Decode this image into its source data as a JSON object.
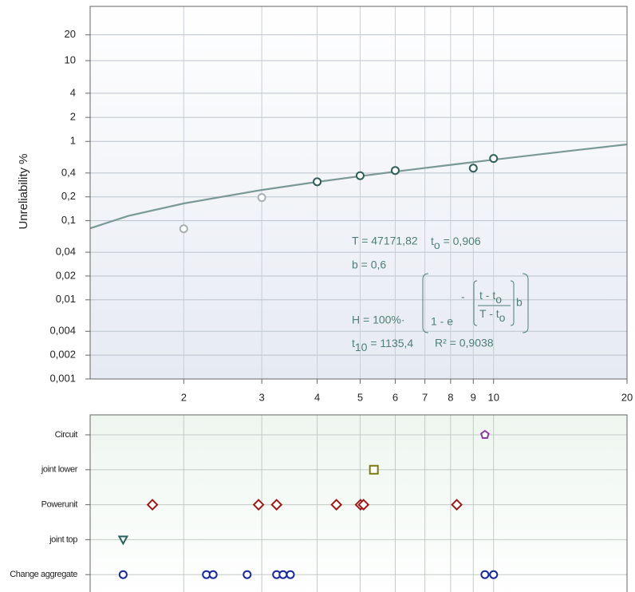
{
  "chart_data": [
    {
      "type": "weibull",
      "y_label": "Unreliability %",
      "xlim": [
        1.23,
        20
      ],
      "xticks": [
        2,
        3,
        4,
        5,
        6,
        7,
        8,
        9,
        10,
        20
      ],
      "ylim": [
        0.001,
        40
      ],
      "yticks": [
        {
          "value": 0.001,
          "label": "0,001"
        },
        {
          "value": 0.002,
          "label": "0,002"
        },
        {
          "value": 0.004,
          "label": "0,004"
        },
        {
          "value": 0.01,
          "label": "0,01"
        },
        {
          "value": 0.02,
          "label": "0,02"
        },
        {
          "value": 0.04,
          "label": "0,04"
        },
        {
          "value": 0.1,
          "label": "0,1"
        },
        {
          "value": 0.2,
          "label": "0,2"
        },
        {
          "value": 0.4,
          "label": "0,4"
        },
        1,
        2,
        4,
        10,
        20
      ],
      "grid": true,
      "series": [
        {
          "color": "#a6b0b0",
          "x": [
            2,
            3
          ],
          "values": [
            0.079,
            0.196
          ]
        },
        {
          "color": "#2f5f5a",
          "x": [
            4,
            5,
            6,
            9,
            10
          ],
          "values": [
            0.31,
            0.37,
            0.43,
            0.46,
            0.61
          ]
        }
      ],
      "fit": {
        "color": "#7a9896",
        "x": [
          1.23,
          1.5,
          2,
          3,
          4,
          5,
          6,
          8,
          10,
          15,
          20
        ],
        "values": [
          0.08,
          0.115,
          0.165,
          0.244,
          0.309,
          0.365,
          0.416,
          0.507,
          0.588,
          0.765,
          0.917
        ]
      },
      "params": {
        "T": "T = 47171,82",
        "t0": "t",
        "t0_sub": "o",
        "t0_rest": " = 0,906",
        "b": "b = 0,6",
        "t10": "t",
        "t10_sub": "10",
        "t10_rest": " = 1135,4",
        "r2": "R² = 0,9038"
      },
      "formula": {
        "lhs": "H  =  100%·",
        "one": "1 - e",
        "minus": "-",
        "num": "t - t",
        "num_sub": "o",
        "den": "T - t",
        "den_sub": "o",
        "exp": "b"
      }
    },
    {
      "type": "strip",
      "xlim": [
        1.23,
        20
      ],
      "xticks": [
        2,
        3,
        4,
        5,
        6,
        7,
        8,
        9,
        10,
        20
      ],
      "grid": true,
      "categories": [
        "Circuit",
        "joint lower",
        "Powerunit",
        "joint top",
        "Change aggregate"
      ],
      "series": [
        {
          "marker": "pentagon",
          "color": "#8a3a9a",
          "x": [
            9.56
          ]
        },
        {
          "marker": "square",
          "color": "#7a7a10",
          "x": [
            5.37
          ]
        },
        {
          "marker": "diamond",
          "color": "#9a1a1a",
          "x": [
            1.7,
            2.95,
            3.24,
            4.42,
            5.01,
            5.09,
            8.26
          ]
        },
        {
          "marker": "triangle-down",
          "color": "#2a6060",
          "x": [
            1.46
          ]
        },
        {
          "marker": "circle",
          "color": "#1a2a9a",
          "x": [
            1.46,
            2.25,
            2.33,
            2.78,
            3.24,
            3.35,
            3.48,
            9.56,
            10.0
          ]
        }
      ]
    }
  ]
}
